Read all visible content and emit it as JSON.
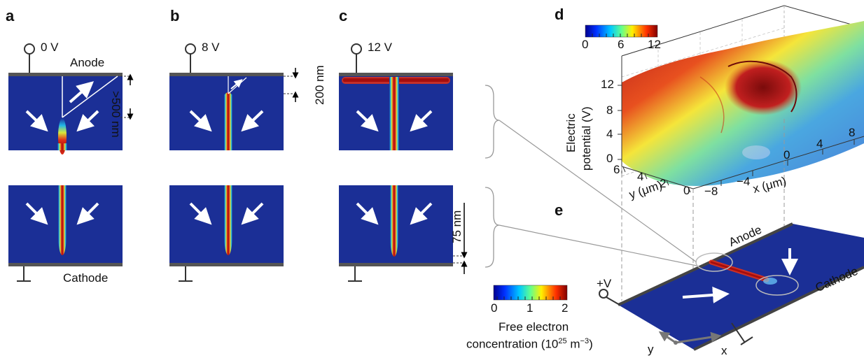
{
  "panels": {
    "a": {
      "label": "a",
      "voltage": "0 V",
      "dimension": ">500 nm"
    },
    "b": {
      "label": "b",
      "voltage": "8 V",
      "dimension": "200 nm"
    },
    "c": {
      "label": "c",
      "voltage": "12 V",
      "dimension": "75 nm"
    },
    "d": {
      "label": "d"
    },
    "e": {
      "label": "e"
    }
  },
  "electrodes": {
    "anode": "Anode",
    "cathode": "Cathode"
  },
  "colorbar_concentration": {
    "ticks": [
      "0",
      "1",
      "2"
    ],
    "label_line1": "Free electron",
    "label_line2_prefix": "concentration (10",
    "label_line2_exp1": "25",
    "label_line2_mid": " m",
    "label_line2_exp2": "−3",
    "label_line2_suffix": ")"
  },
  "colorbar_potential": {
    "ticks": [
      "0",
      "6",
      "12"
    ]
  },
  "plot3d": {
    "zlabel_line1": "Electric",
    "zlabel_line2": "potential (V)",
    "z_ticks": [
      "0",
      "4",
      "8",
      "12"
    ],
    "x_ticks": [
      "−8",
      "−4",
      "0",
      "4",
      "8"
    ],
    "y_ticks": [
      "0",
      "2",
      "4",
      "6"
    ],
    "xlabel": "x (μm)",
    "ylabel": "y (μm)"
  },
  "device": {
    "terminal": "+V",
    "axis_x": "x",
    "axis_y": "y",
    "anode": "Anode",
    "cathode": "Cathode"
  },
  "colors": {
    "field_blue": "#1b2f96",
    "electrode": "#555555"
  }
}
